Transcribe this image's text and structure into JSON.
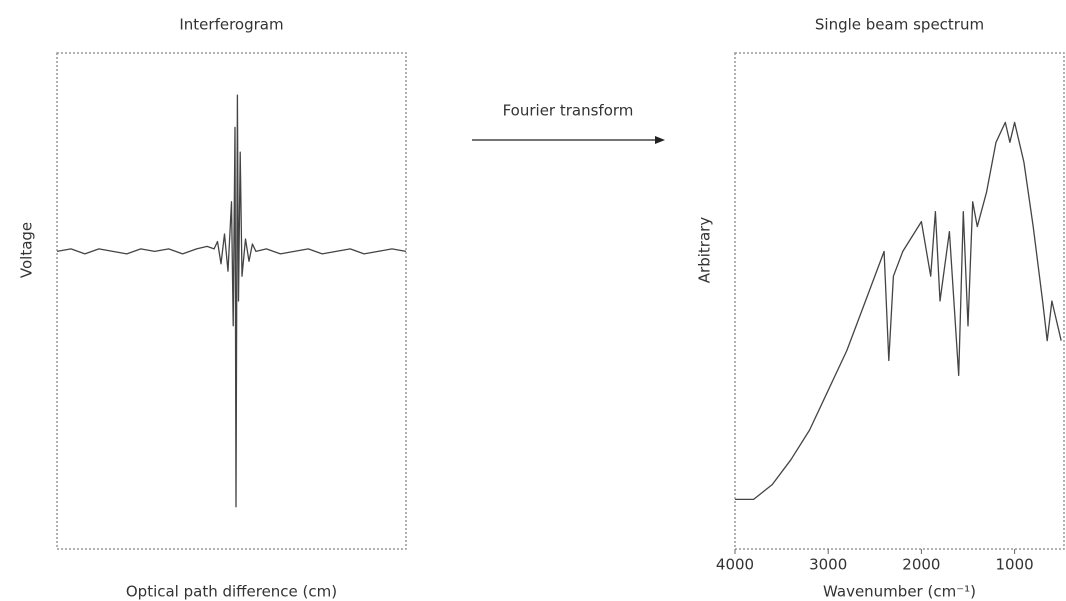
{
  "annotation": "Fourier transform",
  "chart_data": [
    {
      "type": "line",
      "title": "Interferogram",
      "xlabel": "Optical path difference (cm)",
      "ylabel": "Voltage",
      "xlim": [
        0,
        100
      ],
      "ylim": [
        -1.2,
        0.8
      ],
      "series": [
        {
          "name": "Interferogram",
          "color": "#444444",
          "x": [
            0,
            4,
            8,
            12,
            16,
            20,
            24,
            28,
            32,
            36,
            40,
            43,
            45,
            46,
            47,
            48,
            49,
            50,
            50.5,
            51,
            51.3,
            51.7,
            52,
            52.5,
            53,
            54,
            55,
            56,
            57,
            60,
            64,
            68,
            72,
            76,
            80,
            84,
            88,
            92,
            96,
            100
          ],
          "values": [
            0,
            0.01,
            -0.01,
            0.01,
            0,
            -0.01,
            0.01,
            0,
            0.01,
            -0.01,
            0.01,
            0.02,
            0.01,
            0.04,
            -0.05,
            0.07,
            -0.08,
            0.2,
            -0.3,
            0.5,
            -1.03,
            0.63,
            -0.2,
            0.4,
            -0.1,
            0.05,
            -0.04,
            0.03,
            0,
            0.01,
            -0.01,
            0,
            0.01,
            -0.01,
            0,
            0.01,
            -0.01,
            0,
            0.01,
            0
          ]
        }
      ]
    },
    {
      "type": "line",
      "title": "Single beam spectrum",
      "xlabel": "Wavenumber (cm⁻¹)",
      "ylabel": "Arbitrary",
      "xlim": [
        4000,
        470
      ],
      "ylim": [
        0,
        1
      ],
      "xticks": [
        4000,
        3000,
        2000,
        1000
      ],
      "series": [
        {
          "name": "Single beam spectrum",
          "color": "#444444",
          "x": [
            4000,
            3800,
            3600,
            3400,
            3200,
            3000,
            2800,
            2600,
            2400,
            2350,
            2300,
            2200,
            2000,
            1900,
            1850,
            1800,
            1700,
            1600,
            1550,
            1500,
            1450,
            1400,
            1300,
            1200,
            1100,
            1050,
            1000,
            900,
            800,
            700,
            650,
            600,
            500
          ],
          "values": [
            0.1,
            0.1,
            0.13,
            0.18,
            0.24,
            0.32,
            0.4,
            0.5,
            0.6,
            0.38,
            0.55,
            0.6,
            0.66,
            0.55,
            0.68,
            0.5,
            0.64,
            0.35,
            0.68,
            0.45,
            0.7,
            0.65,
            0.72,
            0.82,
            0.86,
            0.82,
            0.86,
            0.78,
            0.65,
            0.5,
            0.42,
            0.5,
            0.42
          ]
        }
      ]
    }
  ]
}
